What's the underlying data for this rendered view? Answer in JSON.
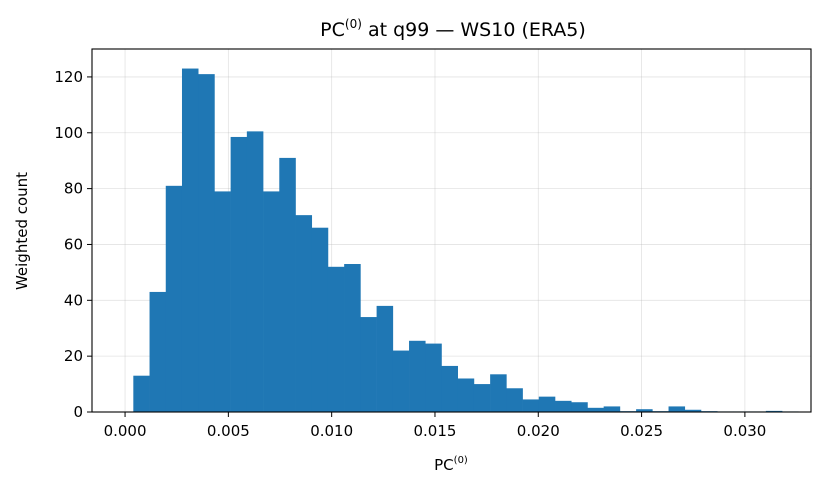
{
  "chart_data": {
    "type": "bar",
    "title_base": "PC",
    "title_sup": "(0)",
    "title_rest": " at q99 — WS10 (ERA5)",
    "xlabel_base": "PC",
    "xlabel_sup": "(0)",
    "ylabel": "Weighted count",
    "xlim": [
      -0.0016,
      0.0332
    ],
    "ylim": [
      0,
      130
    ],
    "xticks": [
      0.0,
      0.005,
      0.01,
      0.015,
      0.02,
      0.025,
      0.03
    ],
    "xtick_labels": [
      "0.000",
      "0.005",
      "0.010",
      "0.015",
      "0.020",
      "0.025",
      "0.030"
    ],
    "yticks": [
      0,
      20,
      40,
      60,
      80,
      100,
      120
    ],
    "ytick_labels": [
      "0",
      "20",
      "40",
      "60",
      "80",
      "100",
      "120"
    ],
    "grid": true,
    "bar_color": "#1f77b4",
    "bin_start": 0.0004,
    "bin_width": 0.000785,
    "values": [
      13,
      43,
      81,
      123,
      121,
      79,
      98.5,
      100.5,
      79,
      91,
      70.5,
      66,
      52,
      53,
      34,
      38,
      22,
      25.5,
      24.5,
      16.5,
      12,
      10,
      13.5,
      8.5,
      4.5,
      5.5,
      4,
      3.5,
      1.5,
      2,
      0.3,
      1,
      0.3,
      2,
      0.8,
      0.3,
      0.2,
      0.2,
      0.2,
      0.4,
      0.2
    ]
  }
}
